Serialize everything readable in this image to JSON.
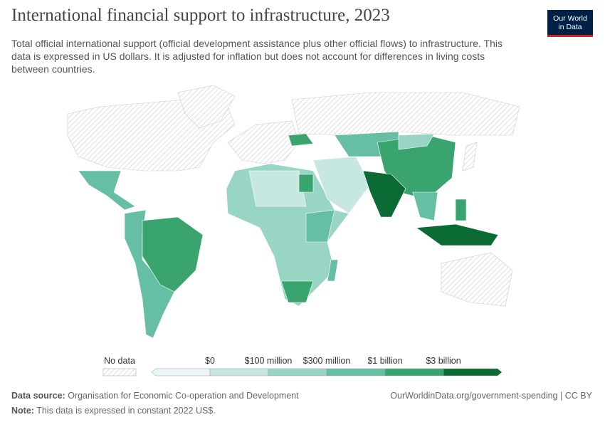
{
  "header": {
    "title": "International financial support to infrastructure, 2023",
    "subtitle": "Total official international support (official development assistance plus other official flows) to infrastructure. This data is expressed in US dollars. It is adjusted for inflation but does not account for differences in living costs between countries.",
    "logo": [
      "Our World",
      "in Data"
    ]
  },
  "legend": {
    "no_data": "No data",
    "ticks": [
      "$0",
      "$100 million",
      "$300 million",
      "$1 billion",
      "$3 billion"
    ],
    "colors": [
      "#eaf6f5",
      "#c7e8e0",
      "#99d5c5",
      "#66bfa5",
      "#3aa46f",
      "#0b6b35"
    ]
  },
  "footer": {
    "source_label": "Data source:",
    "source": "Organisation for Economic Co-operation and Development",
    "note_label": "Note:",
    "note": "This data is expressed in constant 2022 US$.",
    "url": "OurWorldinData.org/government-spending | CC BY"
  }
}
